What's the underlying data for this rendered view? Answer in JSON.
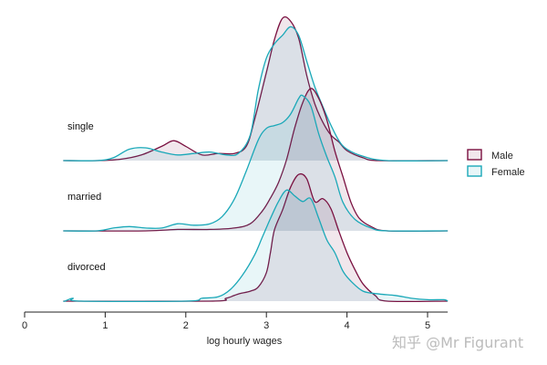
{
  "chart_data": {
    "type": "ridgeline-density",
    "xlabel": "log hourly wages",
    "xlim": [
      0,
      5.25
    ],
    "xticks": [
      0,
      1,
      2,
      3,
      4,
      5
    ],
    "grid": false,
    "legend_position": "right",
    "series": [
      {
        "name": "Male",
        "color": "#7a1040",
        "fill": "rgba(122,16,64,0.10)"
      },
      {
        "name": "Female",
        "color": "#1aa8b8",
        "fill": "rgba(26,168,184,0.10)"
      }
    ],
    "groups": [
      {
        "label": "single",
        "densities": {
          "Male": [
            [
              0.9,
              0
            ],
            [
              1.2,
              0.01
            ],
            [
              1.45,
              0.04
            ],
            [
              1.7,
              0.1
            ],
            [
              1.85,
              0.14
            ],
            [
              2.0,
              0.1
            ],
            [
              2.2,
              0.04
            ],
            [
              2.4,
              0.05
            ],
            [
              2.6,
              0.05
            ],
            [
              2.75,
              0.1
            ],
            [
              2.85,
              0.28
            ],
            [
              3.0,
              0.62
            ],
            [
              3.1,
              0.85
            ],
            [
              3.2,
              1.0
            ],
            [
              3.3,
              0.98
            ],
            [
              3.4,
              0.86
            ],
            [
              3.5,
              0.6
            ],
            [
              3.6,
              0.4
            ],
            [
              3.7,
              0.27
            ],
            [
              3.8,
              0.18
            ],
            [
              3.9,
              0.13
            ],
            [
              4.0,
              0.07
            ],
            [
              4.2,
              0.02
            ],
            [
              4.4,
              0
            ]
          ],
          "Female": [
            [
              0.9,
              0
            ],
            [
              1.1,
              0.02
            ],
            [
              1.3,
              0.08
            ],
            [
              1.5,
              0.09
            ],
            [
              1.7,
              0.06
            ],
            [
              1.9,
              0.04
            ],
            [
              2.1,
              0.05
            ],
            [
              2.3,
              0.06
            ],
            [
              2.5,
              0.04
            ],
            [
              2.65,
              0.05
            ],
            [
              2.8,
              0.18
            ],
            [
              2.9,
              0.5
            ],
            [
              3.0,
              0.72
            ],
            [
              3.1,
              0.82
            ],
            [
              3.2,
              0.88
            ],
            [
              3.3,
              0.94
            ],
            [
              3.4,
              0.88
            ],
            [
              3.5,
              0.7
            ],
            [
              3.6,
              0.52
            ],
            [
              3.7,
              0.38
            ],
            [
              3.8,
              0.25
            ],
            [
              3.9,
              0.14
            ],
            [
              4.0,
              0.08
            ],
            [
              4.2,
              0.03
            ],
            [
              4.5,
              0
            ]
          ]
        }
      },
      {
        "label": "married",
        "densities": {
          "Male": [
            [
              1.5,
              0
            ],
            [
              1.9,
              0.01
            ],
            [
              2.3,
              0.01
            ],
            [
              2.6,
              0.02
            ],
            [
              2.8,
              0.05
            ],
            [
              2.95,
              0.14
            ],
            [
              3.05,
              0.23
            ],
            [
              3.15,
              0.34
            ],
            [
              3.25,
              0.5
            ],
            [
              3.35,
              0.72
            ],
            [
              3.45,
              0.9
            ],
            [
              3.55,
              1.0
            ],
            [
              3.65,
              0.93
            ],
            [
              3.75,
              0.78
            ],
            [
              3.85,
              0.56
            ],
            [
              3.95,
              0.38
            ],
            [
              4.05,
              0.2
            ],
            [
              4.15,
              0.09
            ],
            [
              4.3,
              0.03
            ],
            [
              4.5,
              0
            ]
          ],
          "Female": [
            [
              0.9,
              0
            ],
            [
              1.1,
              0.02
            ],
            [
              1.3,
              0.03
            ],
            [
              1.5,
              0.02
            ],
            [
              1.7,
              0.02
            ],
            [
              1.9,
              0.05
            ],
            [
              2.1,
              0.04
            ],
            [
              2.3,
              0.05
            ],
            [
              2.45,
              0.1
            ],
            [
              2.6,
              0.22
            ],
            [
              2.75,
              0.42
            ],
            [
              2.9,
              0.64
            ],
            [
              3.0,
              0.72
            ],
            [
              3.1,
              0.74
            ],
            [
              3.2,
              0.76
            ],
            [
              3.3,
              0.82
            ],
            [
              3.4,
              0.93
            ],
            [
              3.45,
              0.95
            ],
            [
              3.55,
              0.88
            ],
            [
              3.65,
              0.68
            ],
            [
              3.75,
              0.52
            ],
            [
              3.85,
              0.38
            ],
            [
              3.95,
              0.2
            ],
            [
              4.1,
              0.08
            ],
            [
              4.3,
              0.02
            ],
            [
              4.5,
              0
            ]
          ]
        }
      },
      {
        "label": "divorced",
        "densities": {
          "Male": [
            [
              2.3,
              0
            ],
            [
              2.5,
              0.02
            ],
            [
              2.65,
              0.05
            ],
            [
              2.8,
              0.07
            ],
            [
              2.9,
              0.1
            ],
            [
              3.0,
              0.2
            ],
            [
              3.05,
              0.34
            ],
            [
              3.1,
              0.5
            ],
            [
              3.2,
              0.64
            ],
            [
              3.3,
              0.8
            ],
            [
              3.4,
              0.89
            ],
            [
              3.5,
              0.86
            ],
            [
              3.6,
              0.7
            ],
            [
              3.7,
              0.72
            ],
            [
              3.8,
              0.65
            ],
            [
              3.9,
              0.49
            ],
            [
              4.0,
              0.34
            ],
            [
              4.1,
              0.22
            ],
            [
              4.2,
              0.12
            ],
            [
              4.35,
              0.04
            ],
            [
              4.5,
              0
            ]
          ],
          "Female": [
            [
              0.5,
              0
            ],
            [
              0.6,
              0.02
            ],
            [
              0.7,
              0
            ],
            [
              2.0,
              0
            ],
            [
              2.2,
              0.02
            ],
            [
              2.4,
              0.03
            ],
            [
              2.55,
              0.08
            ],
            [
              2.7,
              0.18
            ],
            [
              2.85,
              0.32
            ],
            [
              2.95,
              0.45
            ],
            [
              3.05,
              0.58
            ],
            [
              3.15,
              0.7
            ],
            [
              3.25,
              0.78
            ],
            [
              3.35,
              0.74
            ],
            [
              3.45,
              0.7
            ],
            [
              3.55,
              0.72
            ],
            [
              3.65,
              0.58
            ],
            [
              3.75,
              0.43
            ],
            [
              3.85,
              0.34
            ],
            [
              3.95,
              0.21
            ],
            [
              4.05,
              0.14
            ],
            [
              4.2,
              0.07
            ],
            [
              4.4,
              0.05
            ],
            [
              4.6,
              0.04
            ],
            [
              4.8,
              0.02
            ],
            [
              5.0,
              0.01
            ],
            [
              5.2,
              0.01
            ]
          ]
        }
      }
    ]
  },
  "watermark": "知乎 @Mr Figurant"
}
